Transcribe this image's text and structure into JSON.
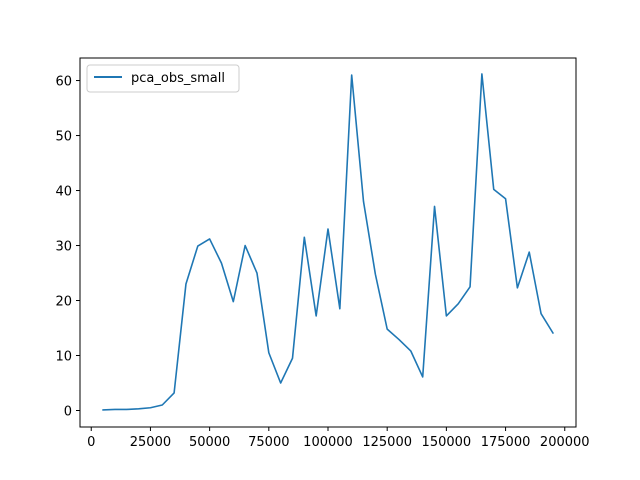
{
  "chart_data": {
    "type": "line",
    "title": "",
    "xlabel": "",
    "ylabel": "",
    "xlim": [
      -4750,
      204750
    ],
    "ylim": [
      -3.0,
      64.1
    ],
    "x_ticks": [
      0,
      25000,
      50000,
      75000,
      100000,
      125000,
      150000,
      175000,
      200000
    ],
    "y_ticks": [
      0,
      10,
      20,
      30,
      40,
      50,
      60
    ],
    "grid": false,
    "legend": {
      "position": "top-left",
      "entries": [
        "pca_obs_small"
      ]
    },
    "series": [
      {
        "name": "pca_obs_small",
        "color": "#1f77b4",
        "x": [
          5000,
          10000,
          15000,
          20000,
          25000,
          30000,
          35000,
          40000,
          45000,
          50000,
          55000,
          60000,
          65000,
          70000,
          75000,
          80000,
          85000,
          90000,
          95000,
          100000,
          105000,
          110000,
          115000,
          120000,
          125000,
          130000,
          135000,
          140000,
          145000,
          150000,
          155000,
          160000,
          165000,
          170000,
          175000,
          180000,
          185000,
          190000,
          195000
        ],
        "y": [
          0.1,
          0.2,
          0.2,
          0.3,
          0.5,
          1.0,
          3.2,
          23.0,
          29.9,
          31.2,
          26.8,
          19.8,
          30.0,
          25.0,
          10.5,
          5.0,
          9.5,
          31.5,
          17.2,
          33.0,
          18.5,
          61.0,
          38.0,
          24.8,
          14.8,
          12.9,
          10.8,
          6.1,
          37.1,
          17.2,
          19.4,
          22.5,
          61.2,
          40.2,
          38.5,
          22.3,
          28.8,
          17.6,
          14.1
        ]
      }
    ]
  }
}
